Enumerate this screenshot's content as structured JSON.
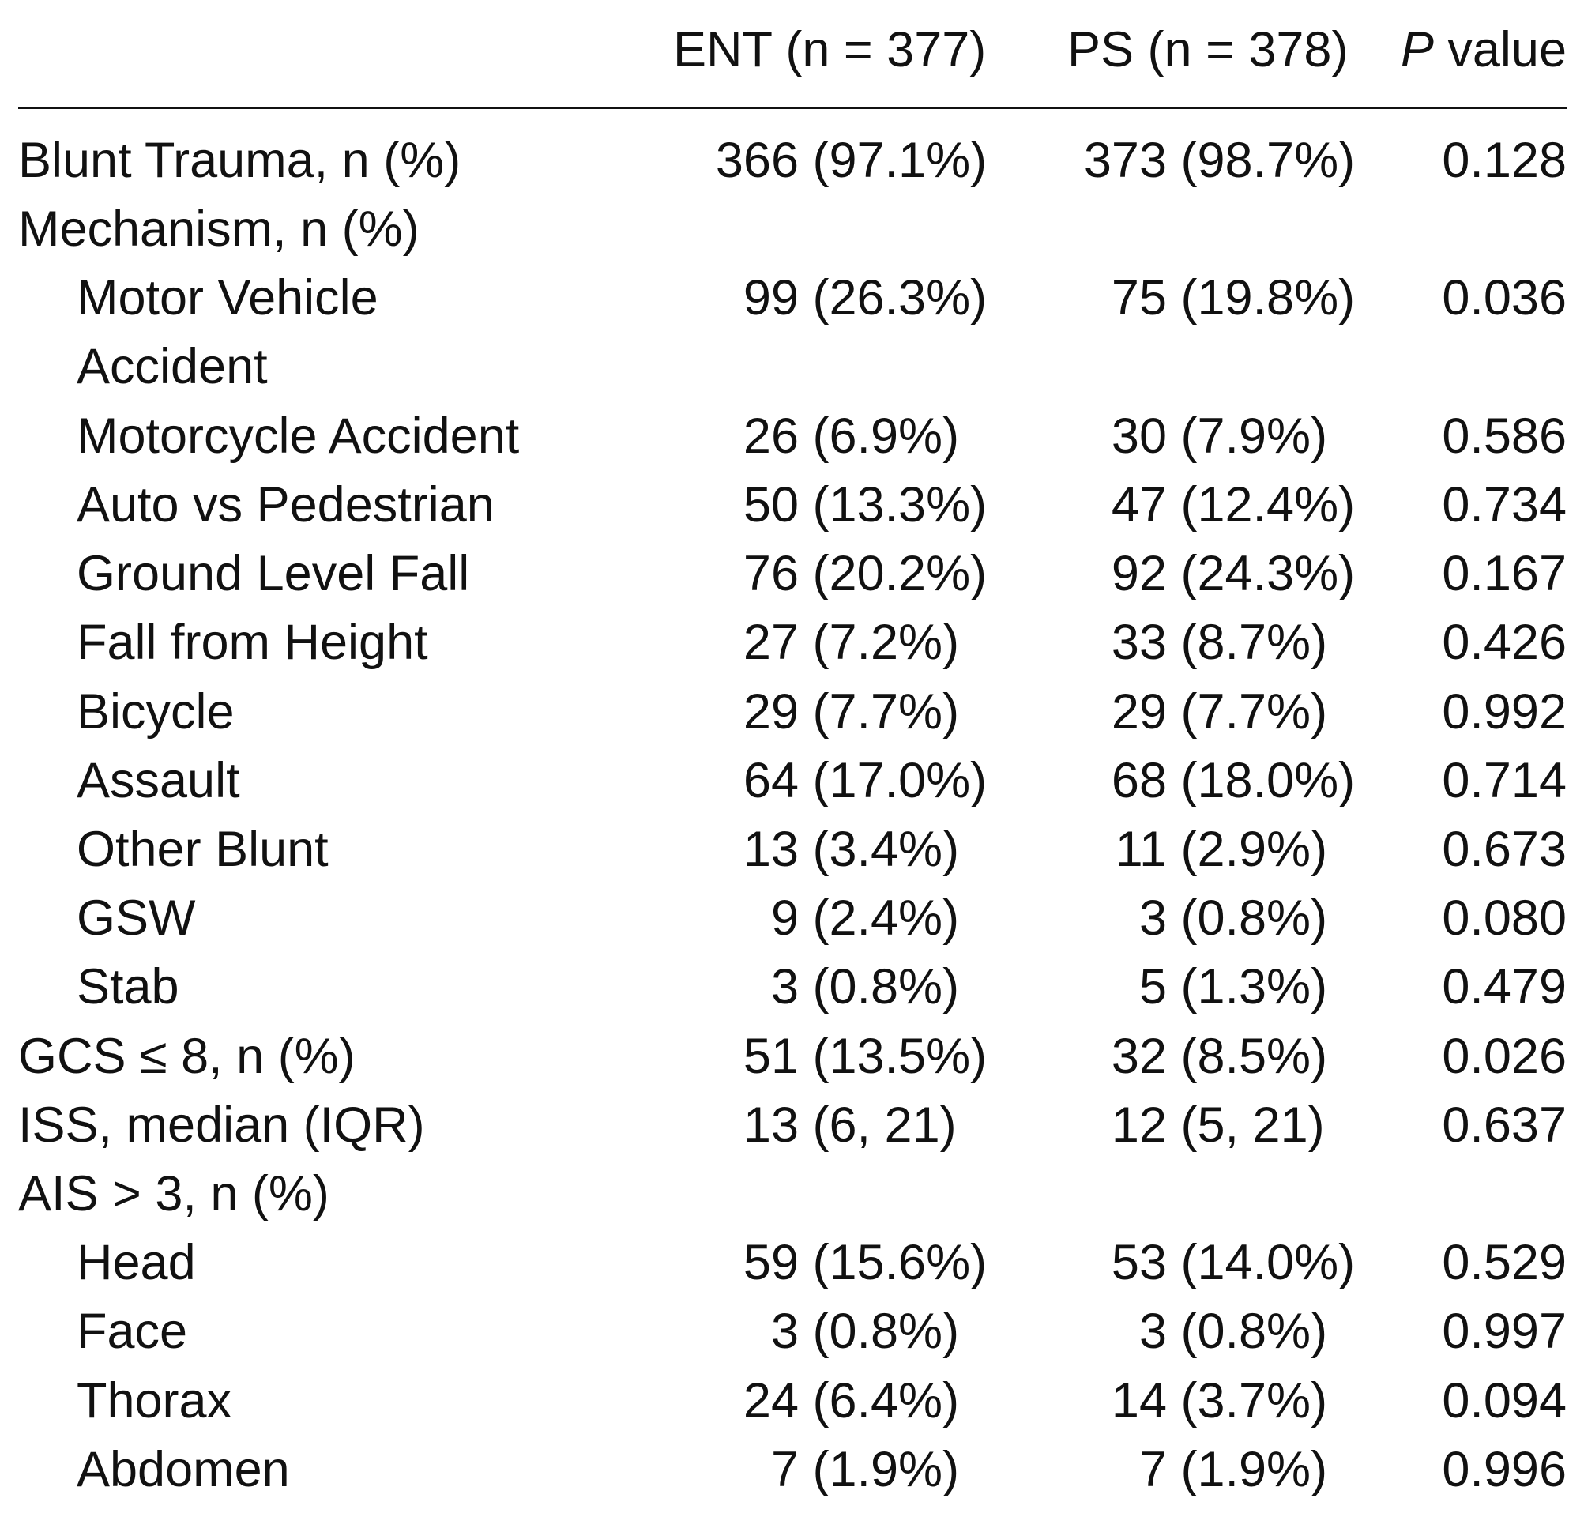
{
  "header": {
    "ent": "ENT (n = 377)",
    "ps": "PS (n = 378)",
    "p_value": {
      "italic": "P",
      "text": "value"
    }
  },
  "table": {
    "rows": [
      {
        "label": "Blunt Trauma, n (%)",
        "level": 0,
        "ent": "366 (97.1%)",
        "ps": "373 (98.7%)",
        "p": "0.128"
      },
      {
        "label": "Mechanism, n (%)",
        "level": 0
      },
      {
        "label": "Motor Vehicle Accident",
        "level": 1,
        "ent": "99 (26.3%)",
        "ps": "75 (19.8%)",
        "p": "0.036"
      },
      {
        "label": "Motorcycle Accident",
        "level": 1,
        "ent": "26 (6.9%)",
        "ps": "30 (7.9%)",
        "p": "0.586"
      },
      {
        "label": "Auto vs Pedestrian",
        "level": 1,
        "ent": "50 (13.3%)",
        "ps": "47 (12.4%)",
        "p": "0.734"
      },
      {
        "label": "Ground Level Fall",
        "level": 1,
        "ent": "76 (20.2%)",
        "ps": "92 (24.3%)",
        "p": "0.167"
      },
      {
        "label": "Fall from Height",
        "level": 1,
        "ent": "27 (7.2%)",
        "ps": "33 (8.7%)",
        "p": "0.426"
      },
      {
        "label": "Bicycle",
        "level": 1,
        "ent": "29 (7.7%)",
        "ps": "29 (7.7%)",
        "p": "0.992"
      },
      {
        "label": "Assault",
        "level": 1,
        "ent": "64 (17.0%)",
        "ps": "68 (18.0%)",
        "p": "0.714"
      },
      {
        "label": "Other Blunt",
        "level": 1,
        "ent": "13 (3.4%)",
        "ps": "11 (2.9%)",
        "p": "0.673"
      },
      {
        "label": "GSW",
        "level": 1,
        "ent": "9 (2.4%)",
        "ps": "3 (0.8%)",
        "p": "0.080"
      },
      {
        "label": "Stab",
        "level": 1,
        "ent": "3 (0.8%)",
        "ps": "5 (1.3%)",
        "p": "0.479"
      },
      {
        "label": "GCS ≤ 8, n (%)",
        "level": 0,
        "ent": "51 (13.5%)",
        "ps": "32 (8.5%)",
        "p": "0.026"
      },
      {
        "label": "ISS, median (IQR)",
        "level": 0,
        "ent": "13 (6, 21)",
        "ps": "12 (5, 21)",
        "p": "0.637"
      },
      {
        "label": "AIS > 3, n (%)",
        "level": 0
      },
      {
        "label": "Head",
        "level": 1,
        "ent": "59 (15.6%)",
        "ps": "53 (14.0%)",
        "p": "0.529"
      },
      {
        "label": "Face",
        "level": 1,
        "ent": "3 (0.8%)",
        "ps": "3 (0.8%)",
        "p": "0.997"
      },
      {
        "label": "Thorax",
        "level": 1,
        "ent": "24 (6.4%)",
        "ps": "14 (3.7%)",
        "p": "0.094"
      },
      {
        "label": "Abdomen",
        "level": 1,
        "ent": "7 (1.9%)",
        "ps": "7 (1.9%)",
        "p": "0.996"
      }
    ]
  }
}
